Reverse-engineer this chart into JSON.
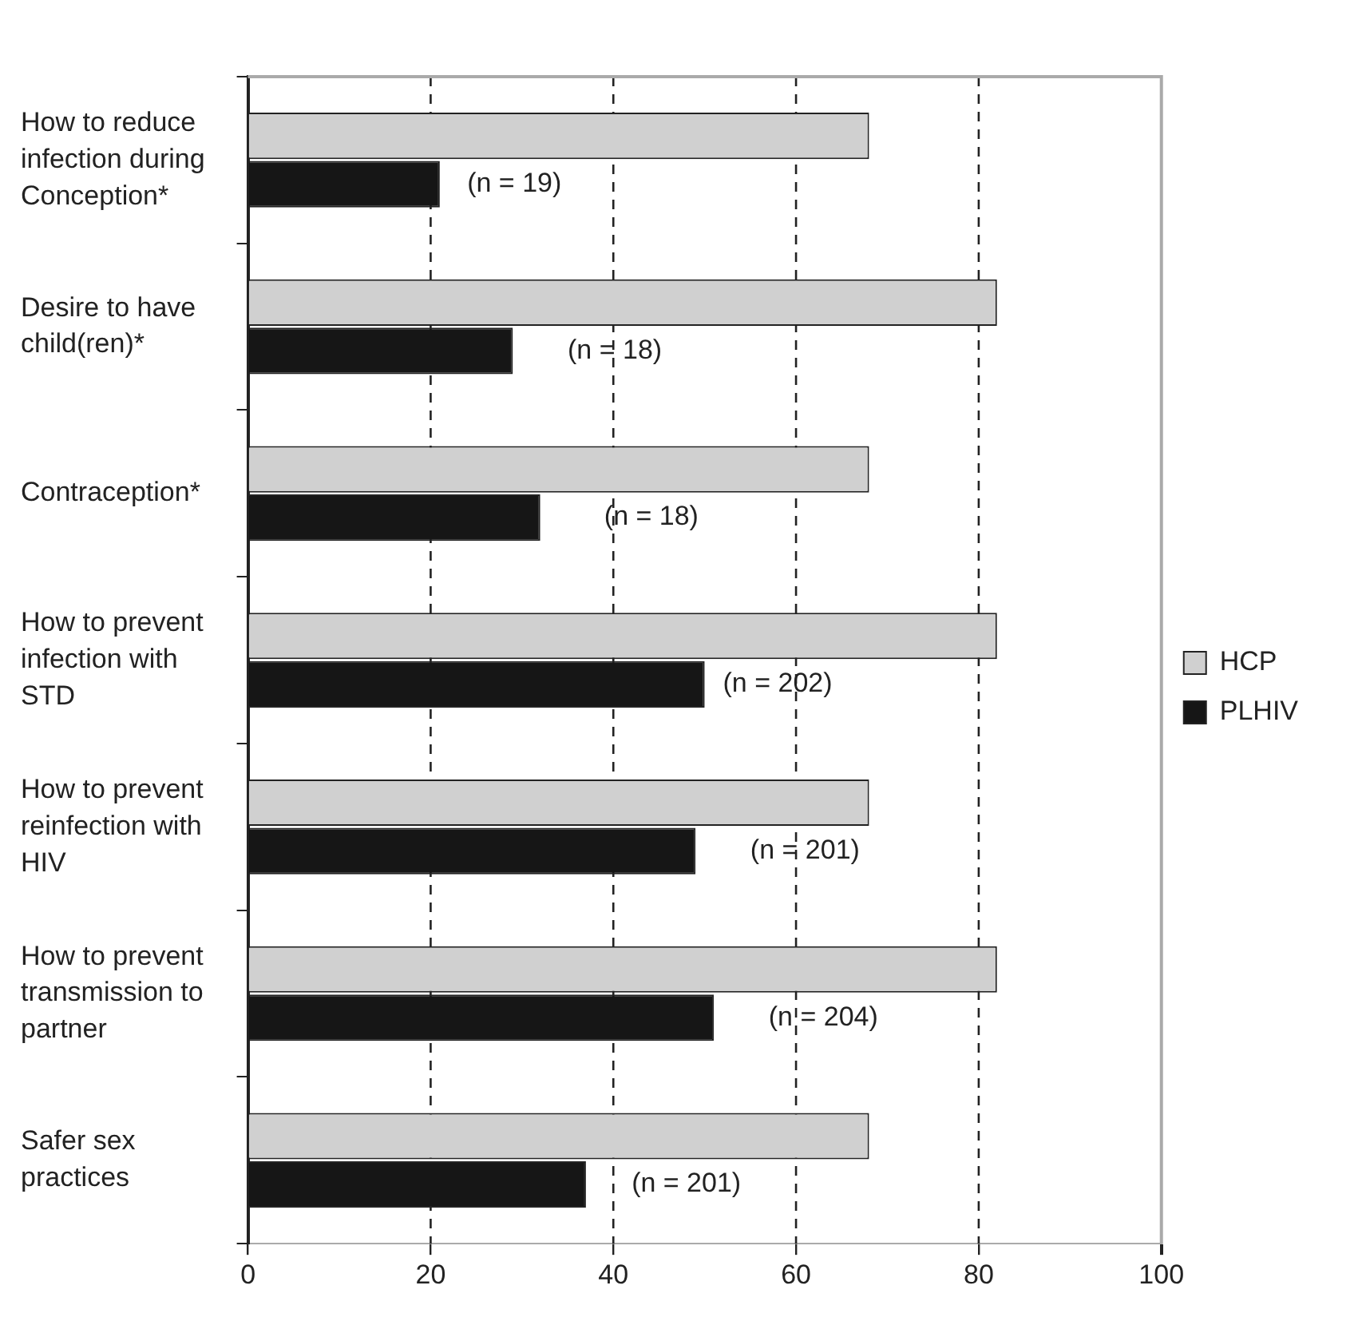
{
  "chart_data": {
    "type": "bar",
    "orientation": "horizontal",
    "categories": [
      "How to reduce infection during Conception*",
      "Desire to have child(ren)*",
      "Contraception*",
      "How to prevent infection with STD",
      "How to prevent reinfection with HIV",
      "How to prevent transmission to partner",
      "Safer sex practices"
    ],
    "series": [
      {
        "name": "HCP",
        "color": "#d0d0d0",
        "values": [
          68,
          82,
          68,
          82,
          68,
          82,
          68
        ]
      },
      {
        "name": "PLHIV",
        "color": "#161616",
        "values": [
          21,
          29,
          32,
          50,
          49,
          51,
          37
        ]
      }
    ],
    "xlim": [
      0,
      100
    ],
    "xticks": [
      0,
      20,
      40,
      60,
      80,
      100
    ],
    "grid": "x",
    "line_style": "dashed",
    "legend": "right",
    "annotations": [
      {
        "text": "(n = 19)",
        "x": 24,
        "y": "How to reduce infection during Conception*"
      },
      {
        "text": "(n = 18)",
        "x": 35,
        "y": "Desire to have child(ren)*"
      },
      {
        "text": "(n = 18)",
        "x": 39,
        "y": "Contraception*"
      },
      {
        "text": "(n = 202)",
        "x": 52,
        "y": "How to prevent infection with STD"
      },
      {
        "text": "(n = 201)",
        "x": 55,
        "y": "How to prevent reinfection with HIV"
      },
      {
        "text": "(n = 204)",
        "x": 57,
        "y": "How to prevent transmission to partner"
      },
      {
        "text": "(n = 201)",
        "x": 42,
        "y": "Safer sex practices"
      }
    ]
  }
}
